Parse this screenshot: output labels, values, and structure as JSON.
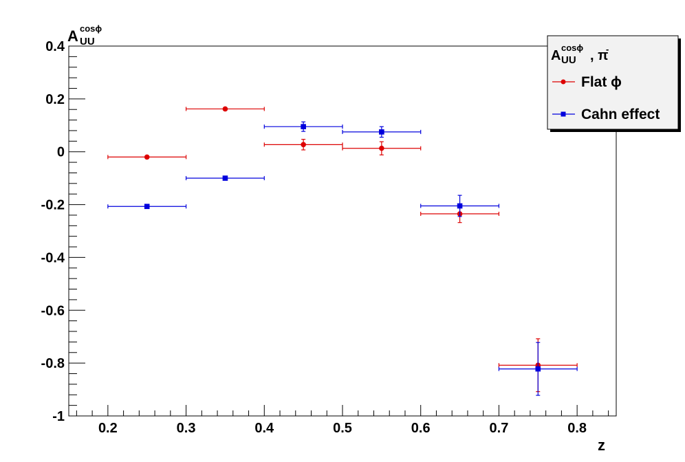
{
  "chart_data": {
    "type": "scatter",
    "title": "",
    "xlabel": "z",
    "ylabel": {
      "main": "A",
      "sup": "cosϕ",
      "sub": "UU"
    },
    "xlim": [
      0.15,
      0.85
    ],
    "ylim": [
      -1,
      0.4
    ],
    "x_ticks": [
      0.2,
      0.3,
      0.4,
      0.5,
      0.6,
      0.7,
      0.8
    ],
    "x_tick_labels": [
      "0.2",
      "0.3",
      "0.4",
      "0.5",
      "0.6",
      "0.7",
      "0.8"
    ],
    "y_ticks": [
      -1,
      -0.8,
      -0.6,
      -0.4,
      -0.2,
      0,
      0.2,
      0.4
    ],
    "y_tick_labels": [
      "-1",
      "-0.8",
      "-0.6",
      "-0.4",
      "-0.2",
      "0",
      "0.2",
      "0.4"
    ],
    "grid": false,
    "legend": {
      "placement": "top-right",
      "title": {
        "main": "A",
        "sup": "cosϕ",
        "sub": "UU",
        "rest": ", π",
        "rest_sup": "-"
      },
      "entries": [
        "Flat ϕ",
        "Cahn effect"
      ]
    },
    "series": [
      {
        "name": "Flat ϕ",
        "color": "#dd0000",
        "marker": "circle",
        "x": [
          0.25,
          0.35,
          0.45,
          0.55,
          0.65,
          0.75
        ],
        "y": [
          -0.02,
          0.162,
          0.027,
          0.013,
          -0.235,
          -0.808
        ],
        "x_err": [
          0.05,
          0.05,
          0.05,
          0.05,
          0.05,
          0.05
        ],
        "y_err": [
          0.003,
          0.005,
          0.02,
          0.025,
          0.033,
          0.1
        ]
      },
      {
        "name": "Cahn effect",
        "color": "#0000dd",
        "marker": "square",
        "x": [
          0.25,
          0.35,
          0.45,
          0.55,
          0.65,
          0.75
        ],
        "y": [
          -0.207,
          -0.1,
          0.095,
          0.075,
          -0.205,
          -0.822
        ],
        "x_err": [
          0.05,
          0.05,
          0.05,
          0.05,
          0.05,
          0.05
        ],
        "y_err": [
          0.003,
          0.005,
          0.018,
          0.02,
          0.04,
          0.1
        ]
      }
    ]
  }
}
